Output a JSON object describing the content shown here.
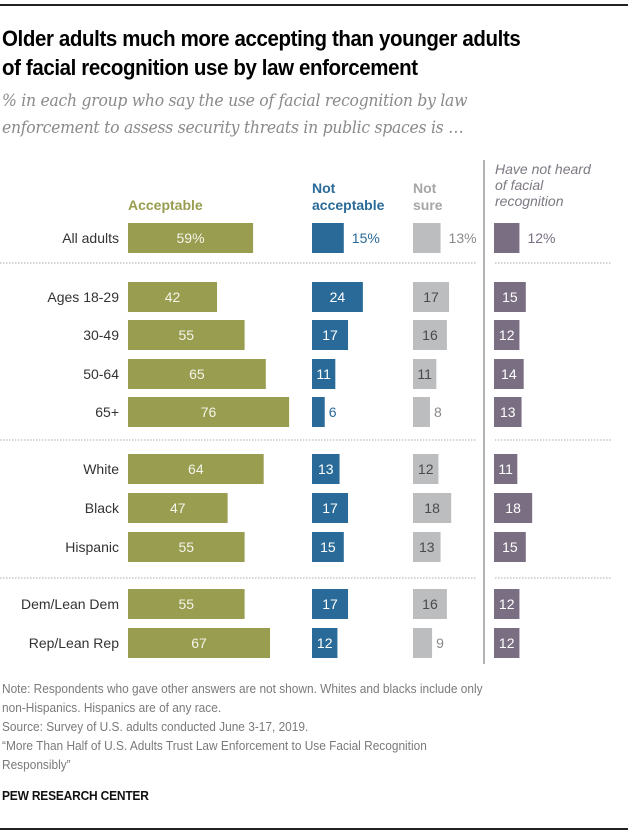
{
  "title_line1": "Older adults much more accepting than younger adults",
  "title_line2": "of facial recognition use by law enforcement",
  "subtitle_line1": "% in each group who say the use of facial recognition by law",
  "subtitle_line2": "enforcement to assess security threats in public spaces is …",
  "column_headers": {
    "acceptable": "Acceptable",
    "not_acceptable_1": "Not",
    "not_acceptable_2": "acceptable",
    "not_sure_1": "Not",
    "not_sure_2": "sure",
    "not_heard_1": "Have not heard",
    "not_heard_2": "of facial",
    "not_heard_3": "recognition"
  },
  "colors": {
    "acceptable": "#989d4f",
    "not_acceptable": "#2a6a99",
    "not_sure": "#bcbdbf",
    "not_heard": "#7a6e82",
    "not_acceptable_text": "#2a6a99",
    "not_sure_text": "#8a8a8a",
    "not_heard_text": "#7a6e82"
  },
  "chart_data": {
    "type": "bar",
    "orientation": "horizontal",
    "title": "Older adults much more accepting than younger adults of facial recognition use by law enforcement",
    "subtitle": "% in each group who say the use of facial recognition by law enforcement to assess security threats in public spaces is …",
    "categories": [
      "All adults",
      "Ages 18-29",
      "30-49",
      "50-64",
      "65+",
      "White",
      "Black",
      "Hispanic",
      "Dem/Lean Dem",
      "Rep/Lean Rep"
    ],
    "groups": [
      [
        "All adults"
      ],
      [
        "Ages 18-29",
        "30-49",
        "50-64",
        "65+"
      ],
      [
        "White",
        "Black",
        "Hispanic"
      ],
      [
        "Dem/Lean Dem",
        "Rep/Lean Rep"
      ]
    ],
    "series": [
      {
        "name": "Acceptable",
        "values": [
          59,
          42,
          55,
          65,
          76,
          64,
          47,
          55,
          55,
          67
        ]
      },
      {
        "name": "Not acceptable",
        "values": [
          15,
          24,
          17,
          11,
          6,
          13,
          17,
          15,
          17,
          12
        ]
      },
      {
        "name": "Not sure",
        "values": [
          13,
          17,
          16,
          11,
          8,
          12,
          18,
          13,
          16,
          9
        ]
      },
      {
        "name": "Have not heard of facial recognition",
        "values": [
          12,
          15,
          12,
          14,
          13,
          11,
          18,
          15,
          12,
          12
        ]
      }
    ],
    "first_row_suffix": "%",
    "xlabel": "",
    "ylabel": "",
    "grid": false
  },
  "notes": {
    "note_line1": "Note: Respondents who gave other answers are not shown. Whites and blacks include only",
    "note_line2": "non-Hispanics. Hispanics are of any race.",
    "source": "Source: Survey of U.S. adults conducted June 3-17, 2019.",
    "report_line1": "“More Than Half of U.S. Adults Trust Law Enforcement to Use Facial Recognition",
    "report_line2": "Responsibly”"
  },
  "brand": "PEW RESEARCH CENTER"
}
